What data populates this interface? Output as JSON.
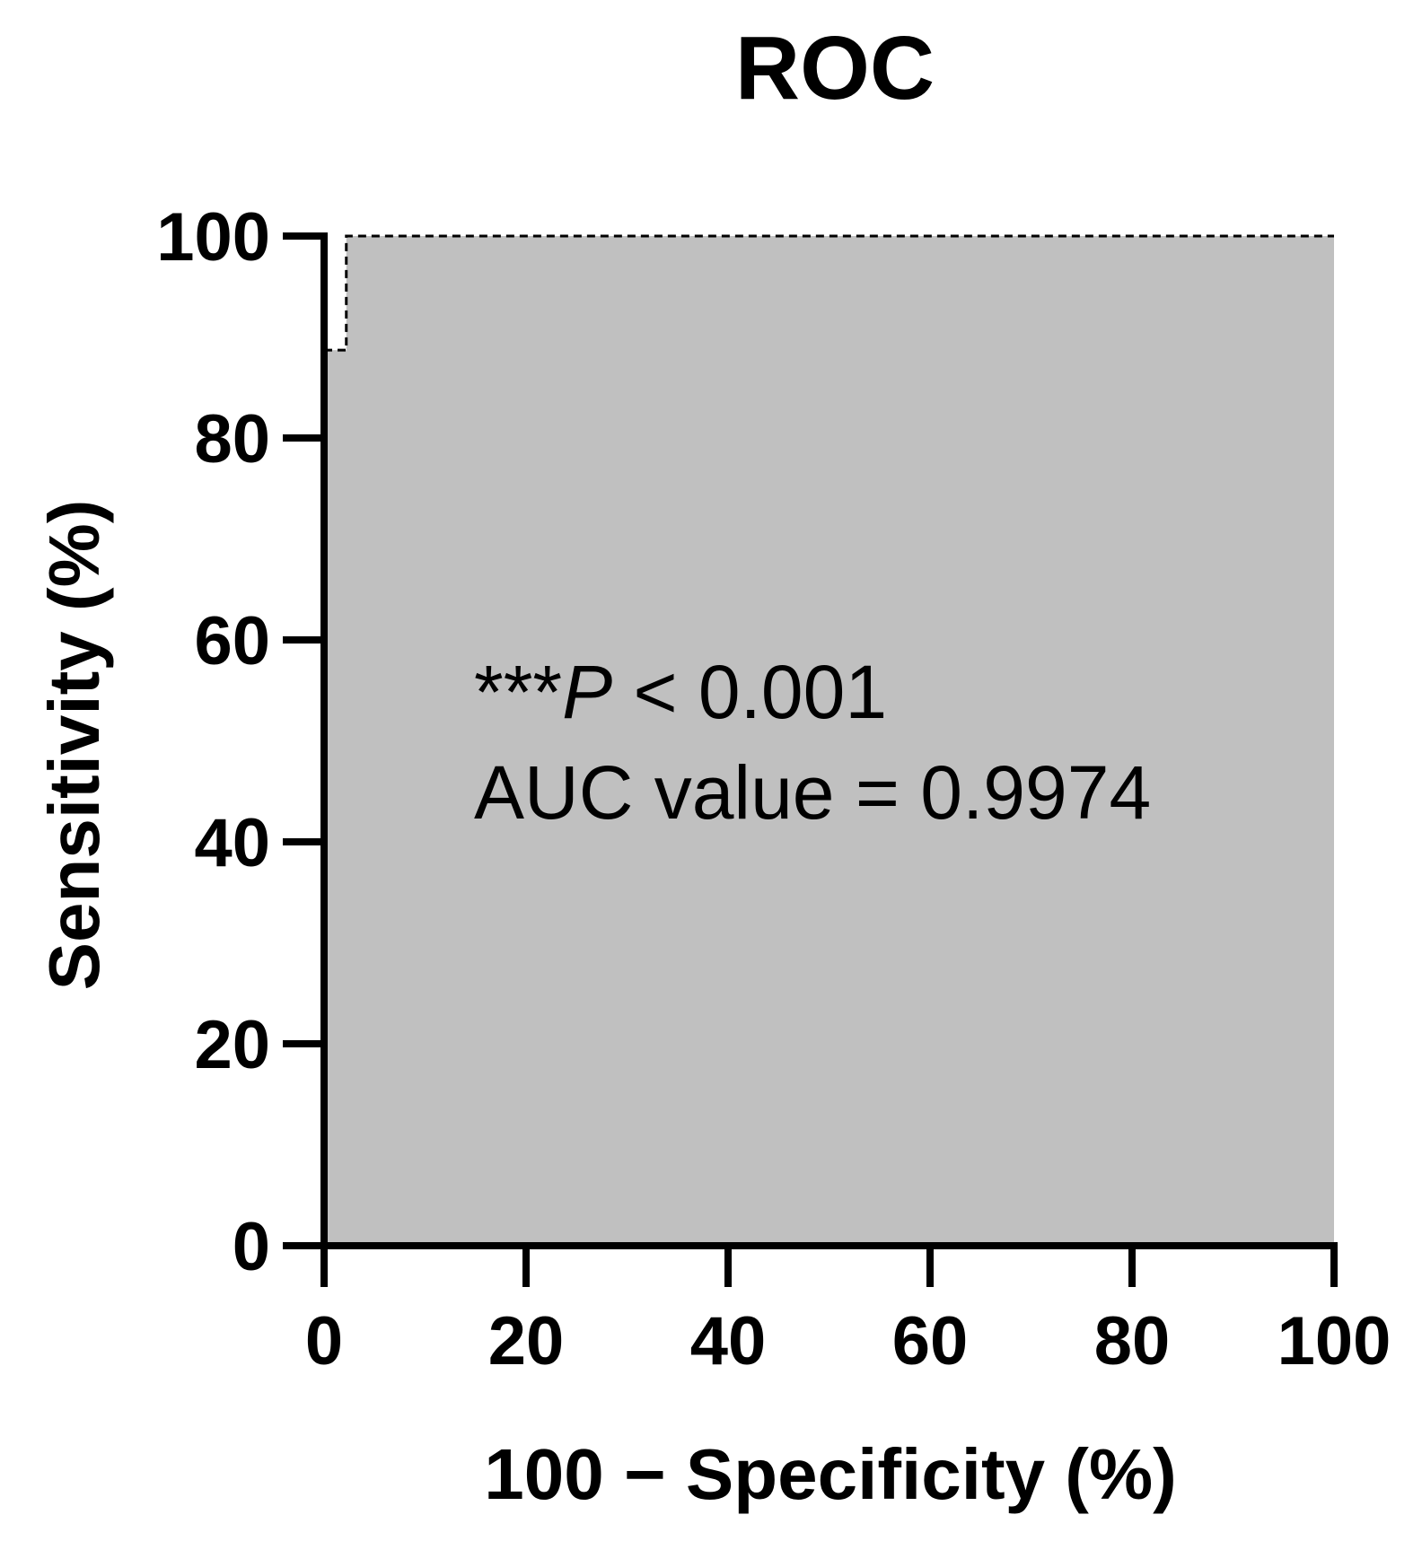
{
  "chart_data": {
    "type": "area",
    "title": "ROC",
    "xlabel": "100 − Specificity (%)",
    "ylabel": "Sensitivity (%)",
    "xlim": [
      0,
      100
    ],
    "ylim": [
      0,
      100
    ],
    "xticks": [
      "0",
      "20",
      "40",
      "60",
      "80",
      "100"
    ],
    "yticks": [
      "0",
      "20",
      "40",
      "60",
      "80",
      "100"
    ],
    "grid": false,
    "fill_color": "#c0c0c0",
    "curve": {
      "x": [
        0,
        0,
        2.2,
        2.2,
        100
      ],
      "y": [
        0,
        88.7,
        88.7,
        100,
        100
      ]
    },
    "annotations": {
      "p_prefix": "***",
      "p_symbol": "P",
      "p_value": " < 0.001",
      "auc": "AUC value = 0.9974"
    }
  }
}
